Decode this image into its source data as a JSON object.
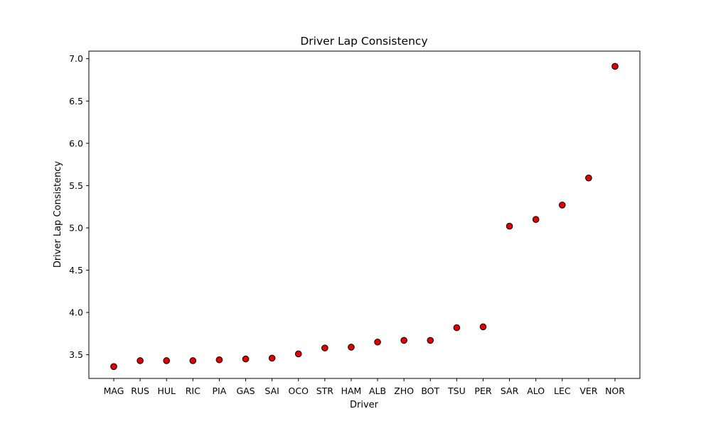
{
  "chart_data": {
    "type": "scatter",
    "title": "Driver Lap Consistency",
    "xlabel": "Driver",
    "ylabel": "Driver Lap Consistency",
    "categories": [
      "MAG",
      "RUS",
      "HUL",
      "RIC",
      "PIA",
      "GAS",
      "SAI",
      "OCO",
      "STR",
      "HAM",
      "ALB",
      "ZHO",
      "BOT",
      "TSU",
      "PER",
      "SAR",
      "ALO",
      "LEC",
      "VER",
      "NOR"
    ],
    "values": [
      3.36,
      3.43,
      3.43,
      3.43,
      3.44,
      3.45,
      3.46,
      3.51,
      3.58,
      3.59,
      3.65,
      3.67,
      3.67,
      3.82,
      3.83,
      5.02,
      5.1,
      5.27,
      5.59,
      6.91
    ],
    "yticks": [
      "3.5",
      "4.0",
      "4.5",
      "5.0",
      "5.5",
      "6.0",
      "6.5",
      "7.0"
    ],
    "ylim": [
      3.22,
      7.09
    ],
    "grid": false,
    "marker_color": "#e00000",
    "marker_edge": "#000000"
  }
}
